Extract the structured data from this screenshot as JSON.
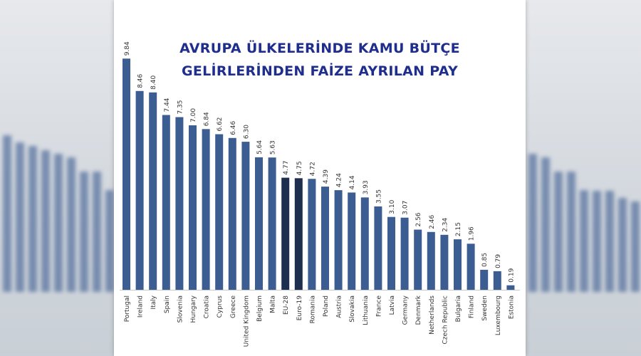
{
  "chart_data": {
    "type": "bar",
    "title_line1": "AVRUPA ÜLKELERİNDE KAMU BÜTÇE",
    "title_line2": "GELİRLERİNDEN FAİZE AYRILAN PAY",
    "categories": [
      "Portugal",
      "Ireland",
      "Italy",
      "Spain",
      "Slovenia",
      "Hungary",
      "Croatia",
      "Cyprus",
      "Greece",
      "United Kingdom",
      "Belgium",
      "Malta",
      "EU-28",
      "Euro-19",
      "Romania",
      "Poland",
      "Austria",
      "Slovakia",
      "Lithuania",
      "France",
      "Latvia",
      "Germany",
      "Denmark",
      "Netherlands",
      "Czech Republic",
      "Bulgaria",
      "Finland",
      "Sweden",
      "Luxembourg",
      "Estonia"
    ],
    "values": [
      9.84,
      8.46,
      8.4,
      7.44,
      7.35,
      7.0,
      6.84,
      6.62,
      6.46,
      6.3,
      5.64,
      5.63,
      4.77,
      4.75,
      4.72,
      4.39,
      4.24,
      4.14,
      3.93,
      3.55,
      3.1,
      3.07,
      2.56,
      2.46,
      2.34,
      2.15,
      1.96,
      0.85,
      0.79,
      0.19
    ],
    "value_labels": [
      "9.84",
      "8.46",
      "8.40",
      "7.44",
      "7.35",
      "7.00",
      "6.84",
      "6.62",
      "6.46",
      "6.30",
      "5.64",
      "5.63",
      "4.77",
      "4.75",
      "4.72",
      "4.39",
      "4.24",
      "4.14",
      "3.93",
      "3.55",
      "3.10",
      "3.07",
      "2.56",
      "2.46",
      "2.34",
      "2.15",
      "1.96",
      "0.85",
      "0.79",
      "0.19"
    ],
    "highlight": [
      "EU-28",
      "Euro-19"
    ],
    "ylim": [
      0,
      10
    ],
    "grid": false,
    "legend": "none",
    "colors": {
      "bar": "#3c5d92",
      "highlight": "#1e2e4f",
      "title": "#1f2d8c"
    }
  }
}
